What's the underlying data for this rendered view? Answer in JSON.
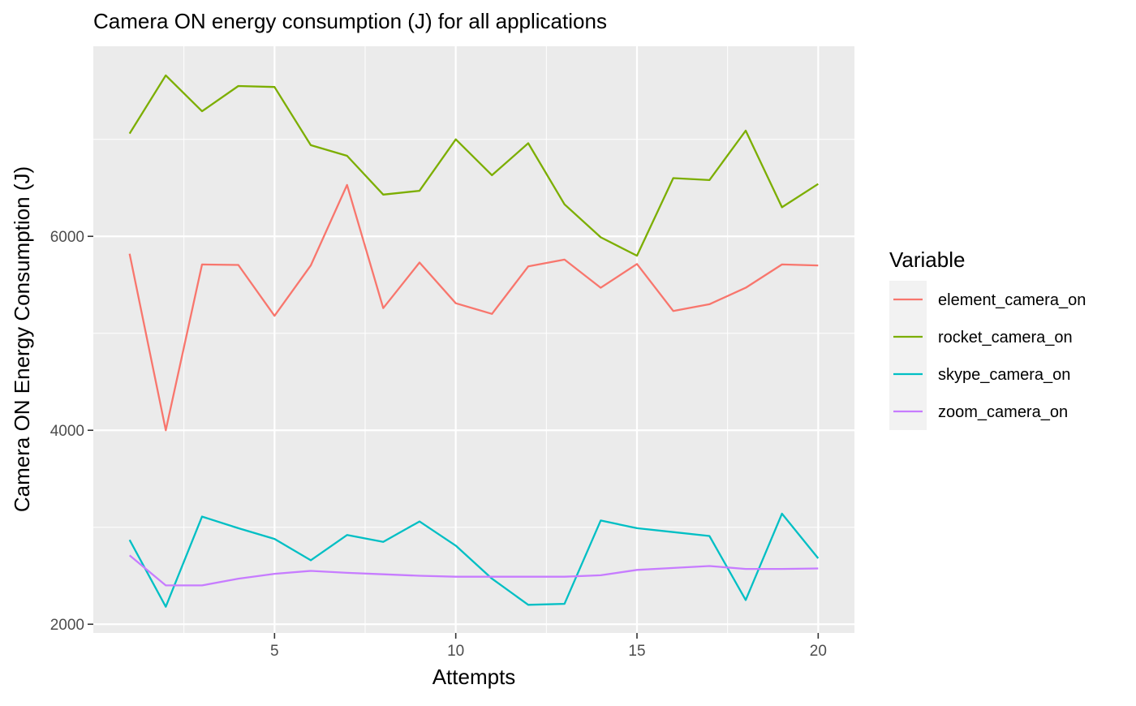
{
  "chart_data": {
    "type": "line",
    "title": "Camera ON energy consumption (J) for all applications",
    "xlabel": "Attempts",
    "ylabel": "Camera ON Energy Consumption (J)",
    "x": [
      1,
      2,
      3,
      4,
      5,
      6,
      7,
      8,
      9,
      10,
      11,
      12,
      13,
      14,
      15,
      16,
      17,
      18,
      19,
      20
    ],
    "xlim": [
      0.0,
      21.0
    ],
    "ylim": [
      1910,
      7960
    ],
    "x_ticks": [
      5,
      10,
      15,
      20
    ],
    "y_ticks": [
      2000,
      4000,
      6000
    ],
    "x_tick_labels": [
      "5",
      "10",
      "15",
      "20"
    ],
    "y_tick_labels": [
      "2000",
      "4000",
      "6000"
    ],
    "grid": true,
    "legend": {
      "title": "Variable",
      "position": "right"
    },
    "series": [
      {
        "name": "element_camera_on",
        "color": "#F8766D",
        "values": [
          5820,
          4000,
          5710,
          5705,
          5180,
          5700,
          6530,
          5260,
          5730,
          5310,
          5200,
          5690,
          5760,
          5470,
          5715,
          5230,
          5300,
          5470,
          5710,
          5700
        ]
      },
      {
        "name": "rocket_camera_on",
        "color": "#7CAE00",
        "values": [
          7060,
          7660,
          7290,
          7550,
          7540,
          6940,
          6830,
          6430,
          6470,
          7000,
          6630,
          6960,
          6330,
          5990,
          5800,
          6600,
          6580,
          7090,
          6300,
          6540
        ]
      },
      {
        "name": "skype_camera_on",
        "color": "#00BFC4",
        "values": [
          2870,
          2180,
          3110,
          2990,
          2880,
          2660,
          2920,
          2850,
          3060,
          2810,
          2470,
          2200,
          2210,
          3070,
          2990,
          2950,
          2910,
          2250,
          3140,
          2680
        ]
      },
      {
        "name": "zoom_camera_on",
        "color": "#C77CFF",
        "values": [
          2710,
          2400,
          2400,
          2470,
          2520,
          2550,
          2530,
          2515,
          2500,
          2490,
          2490,
          2490,
          2490,
          2505,
          2560,
          2580,
          2600,
          2570,
          2570,
          2575
        ]
      }
    ]
  }
}
